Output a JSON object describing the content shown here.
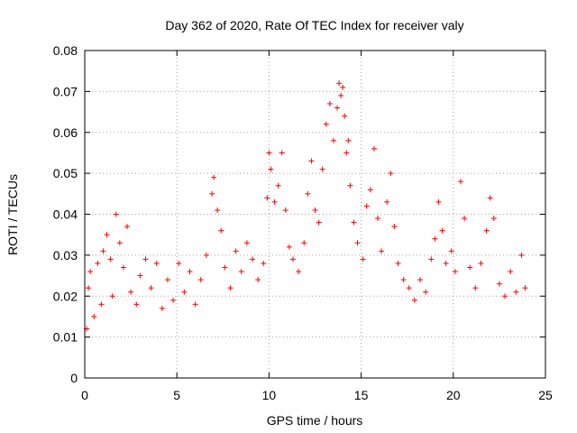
{
  "chart_data": {
    "type": "scatter",
    "title": "Day 362 of 2020, Rate Of TEC Index for receiver valy",
    "xlabel": "GPS time / hours",
    "ylabel": "ROTI / TECUs",
    "xlim": [
      0,
      25
    ],
    "ylim": [
      0,
      0.08
    ],
    "x_ticks": [
      0,
      5,
      10,
      15,
      20,
      25
    ],
    "y_ticks": [
      0,
      0.01,
      0.02,
      0.03,
      0.04,
      0.05,
      0.06,
      0.07,
      0.08
    ],
    "x_tick_labels": [
      "0",
      "5",
      "10",
      "15",
      "20",
      "25"
    ],
    "y_tick_labels": [
      "0",
      "0.01",
      "0.02",
      "0.03",
      "0.04",
      "0.05",
      "0.06",
      "0.07",
      "0.08"
    ],
    "grid": true,
    "marker": "+",
    "color": "#ff0000",
    "series": [
      {
        "name": "ROTI",
        "points": [
          [
            0.1,
            0.012
          ],
          [
            0.2,
            0.022
          ],
          [
            0.3,
            0.026
          ],
          [
            0.5,
            0.015
          ],
          [
            0.7,
            0.028
          ],
          [
            0.9,
            0.018
          ],
          [
            1.0,
            0.031
          ],
          [
            1.2,
            0.035
          ],
          [
            1.4,
            0.029
          ],
          [
            1.5,
            0.02
          ],
          [
            1.7,
            0.04
          ],
          [
            1.9,
            0.033
          ],
          [
            2.1,
            0.027
          ],
          [
            2.3,
            0.037
          ],
          [
            2.5,
            0.021
          ],
          [
            2.8,
            0.018
          ],
          [
            3.0,
            0.025
          ],
          [
            3.3,
            0.029
          ],
          [
            3.6,
            0.022
          ],
          [
            3.9,
            0.028
          ],
          [
            4.2,
            0.017
          ],
          [
            4.5,
            0.024
          ],
          [
            4.8,
            0.019
          ],
          [
            5.1,
            0.028
          ],
          [
            5.4,
            0.021
          ],
          [
            5.7,
            0.026
          ],
          [
            6.0,
            0.018
          ],
          [
            6.3,
            0.024
          ],
          [
            6.6,
            0.03
          ],
          [
            6.9,
            0.045
          ],
          [
            7.0,
            0.049
          ],
          [
            7.2,
            0.041
          ],
          [
            7.4,
            0.036
          ],
          [
            7.6,
            0.027
          ],
          [
            7.9,
            0.022
          ],
          [
            8.2,
            0.031
          ],
          [
            8.5,
            0.026
          ],
          [
            8.8,
            0.033
          ],
          [
            9.1,
            0.029
          ],
          [
            9.4,
            0.024
          ],
          [
            9.7,
            0.028
          ],
          [
            9.9,
            0.044
          ],
          [
            10.0,
            0.055
          ],
          [
            10.1,
            0.051
          ],
          [
            10.3,
            0.043
          ],
          [
            10.5,
            0.047
          ],
          [
            10.7,
            0.055
          ],
          [
            10.9,
            0.041
          ],
          [
            11.1,
            0.032
          ],
          [
            11.3,
            0.029
          ],
          [
            11.6,
            0.026
          ],
          [
            11.9,
            0.033
          ],
          [
            12.1,
            0.045
          ],
          [
            12.3,
            0.053
          ],
          [
            12.5,
            0.041
          ],
          [
            12.7,
            0.038
          ],
          [
            12.9,
            0.051
          ],
          [
            13.1,
            0.062
          ],
          [
            13.3,
            0.067
          ],
          [
            13.5,
            0.058
          ],
          [
            13.7,
            0.066
          ],
          [
            13.8,
            0.072
          ],
          [
            13.9,
            0.069
          ],
          [
            14.0,
            0.071
          ],
          [
            14.1,
            0.064
          ],
          [
            14.2,
            0.055
          ],
          [
            14.3,
            0.058
          ],
          [
            14.4,
            0.047
          ],
          [
            14.6,
            0.038
          ],
          [
            14.8,
            0.033
          ],
          [
            15.1,
            0.029
          ],
          [
            15.3,
            0.042
          ],
          [
            15.5,
            0.046
          ],
          [
            15.7,
            0.056
          ],
          [
            15.9,
            0.039
          ],
          [
            16.1,
            0.031
          ],
          [
            16.4,
            0.043
          ],
          [
            16.6,
            0.05
          ],
          [
            16.8,
            0.037
          ],
          [
            17.0,
            0.028
          ],
          [
            17.3,
            0.024
          ],
          [
            17.6,
            0.022
          ],
          [
            17.9,
            0.019
          ],
          [
            18.2,
            0.024
          ],
          [
            18.5,
            0.021
          ],
          [
            18.8,
            0.029
          ],
          [
            19.0,
            0.034
          ],
          [
            19.2,
            0.043
          ],
          [
            19.4,
            0.036
          ],
          [
            19.6,
            0.028
          ],
          [
            19.9,
            0.031
          ],
          [
            20.1,
            0.026
          ],
          [
            20.4,
            0.048
          ],
          [
            20.6,
            0.039
          ],
          [
            20.9,
            0.027
          ],
          [
            21.2,
            0.022
          ],
          [
            21.5,
            0.028
          ],
          [
            21.8,
            0.036
          ],
          [
            22.0,
            0.044
          ],
          [
            22.2,
            0.039
          ],
          [
            22.5,
            0.023
          ],
          [
            22.8,
            0.02
          ],
          [
            23.1,
            0.026
          ],
          [
            23.4,
            0.021
          ],
          [
            23.7,
            0.03
          ],
          [
            23.9,
            0.022
          ]
        ]
      }
    ]
  }
}
